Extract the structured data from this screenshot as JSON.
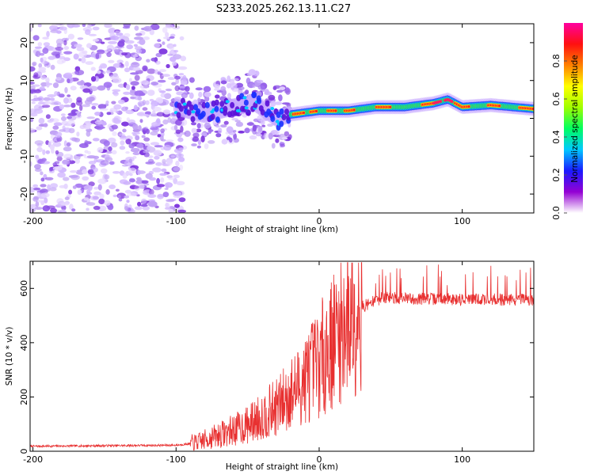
{
  "title": "S233.2025.262.13.11.C27",
  "chart_data": [
    {
      "type": "heatmap",
      "name": "spectrogram",
      "xlabel": "Height of straight line (km)",
      "ylabel": "Frequency (Hz)",
      "xlim": [
        -202,
        150
      ],
      "ylim": [
        -25,
        25
      ],
      "xticks": [
        -200,
        -100,
        0,
        100
      ],
      "yticks": [
        20,
        10,
        0,
        -10,
        -20
      ],
      "ridge": [
        {
          "x": -100,
          "y": 3
        },
        {
          "x": -80,
          "y": 1
        },
        {
          "x": -60,
          "y": 3
        },
        {
          "x": -45,
          "y": 4
        },
        {
          "x": -30,
          "y": 0
        },
        {
          "x": -20,
          "y": 1
        },
        {
          "x": 0,
          "y": 2
        },
        {
          "x": 20,
          "y": 2
        },
        {
          "x": 40,
          "y": 3
        },
        {
          "x": 60,
          "y": 3
        },
        {
          "x": 80,
          "y": 4
        },
        {
          "x": 90,
          "y": 5
        },
        {
          "x": 100,
          "y": 3
        },
        {
          "x": 120,
          "y": 3.5
        },
        {
          "x": 150,
          "y": 2.5
        }
      ],
      "colorbar": {
        "label": "Normalized spectral amplitude",
        "range": [
          0,
          1
        ],
        "ticks": [
          "0.0",
          "0.2",
          "0.4",
          "0.6",
          "0.8"
        ],
        "colors": [
          "#ffffff",
          "#9400d3",
          "#1a1aff",
          "#00c8ff",
          "#00ff60",
          "#a0ff00",
          "#ffff00",
          "#ff8000",
          "#ff1010",
          "#ff00a0"
        ]
      }
    },
    {
      "type": "line",
      "name": "snr",
      "xlabel": "Height of straight line (km)",
      "ylabel": "SNR (10 * v/v)",
      "xlim": [
        -202,
        150
      ],
      "ylim": [
        0,
        700
      ],
      "xticks": [
        -200,
        -100,
        0,
        100
      ],
      "yticks": [
        0,
        200,
        400,
        600
      ],
      "color": "#e83030",
      "trend": [
        {
          "x": -202,
          "y": 18
        },
        {
          "x": -100,
          "y": 22
        },
        {
          "x": -85,
          "y": 30
        },
        {
          "x": -70,
          "y": 55
        },
        {
          "x": -50,
          "y": 90
        },
        {
          "x": -30,
          "y": 150
        },
        {
          "x": -15,
          "y": 220
        },
        {
          "x": 0,
          "y": 310
        },
        {
          "x": 15,
          "y": 420
        },
        {
          "x": 30,
          "y": 530
        },
        {
          "x": 45,
          "y": 565
        },
        {
          "x": 60,
          "y": 560
        },
        {
          "x": 150,
          "y": 555
        }
      ]
    }
  ]
}
